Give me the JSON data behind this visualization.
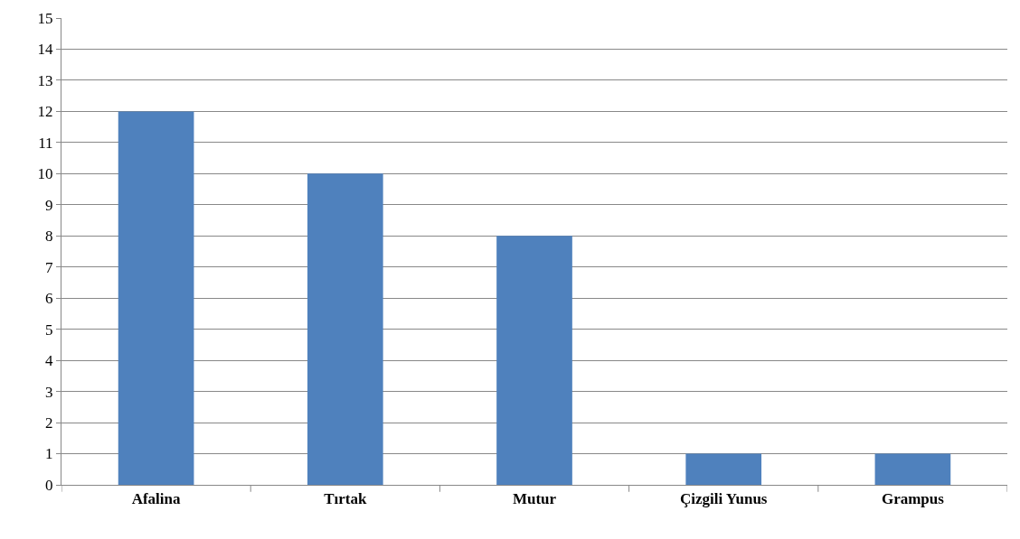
{
  "chart_data": {
    "type": "bar",
    "categories": [
      "Afalina",
      "Tırtak",
      "Mutur",
      "Çizgili Yunus",
      "Grampus"
    ],
    "values": [
      12,
      10,
      8,
      1,
      1
    ],
    "color": "#4f81bd",
    "ylim": [
      0,
      15
    ],
    "yticks": [
      0,
      1,
      2,
      3,
      4,
      5,
      6,
      7,
      8,
      9,
      10,
      11,
      12,
      13,
      14,
      15
    ],
    "grid": "y"
  }
}
